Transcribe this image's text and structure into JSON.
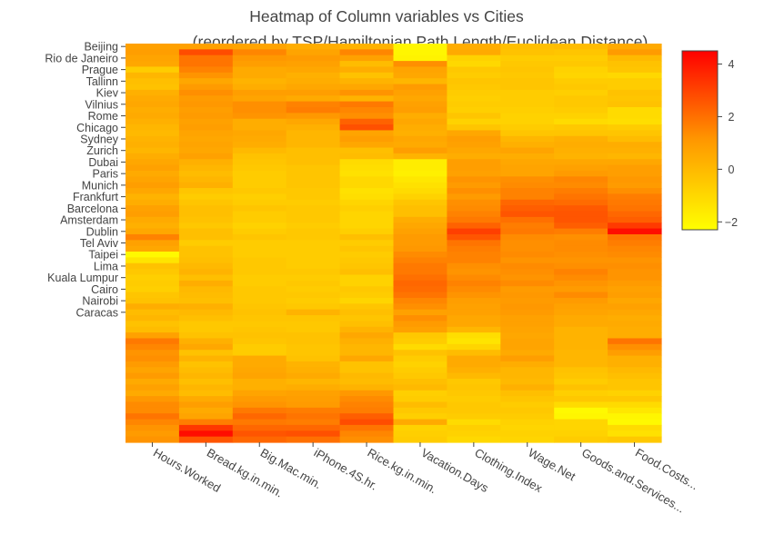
{
  "chart_data": {
    "type": "heatmap",
    "title_lines": [
      "Heatmap of Column variables vs Cities",
      "(reordered by TSP/Hamiltonian Path Length/Euclidean Distance)"
    ],
    "x_categories": [
      "Hours.Worked",
      "Bread.kg.in.min.",
      "Big.Mac.min.",
      "iPhone.4S.hr.",
      "Rice.kg.in.min.",
      "Vacation.Days",
      "Clothing.Index",
      "Wage.Net",
      "Goods.and.Services...",
      "Food.Costs..."
    ],
    "y_tick_labels": [
      "Beijing",
      "Rio de Janeiro",
      "Prague",
      "Tallinn",
      "Kiev",
      "Vilnius",
      "Rome",
      "Chicago",
      "Sydney",
      "Zurich",
      "Dubai",
      "Paris",
      "Munich",
      "Frankfurt",
      "Barcelona",
      "Amsterdam",
      "Dublin",
      "Tel Aviv",
      "Taipei",
      "Lima",
      "Kuala Lumpur",
      "Cairo",
      "Nairobi",
      "Caracas"
    ],
    "y_tick_rows": [
      0,
      2,
      4,
      6,
      8,
      10,
      12,
      14,
      16,
      18,
      20,
      22,
      24,
      26,
      28,
      30,
      32,
      34,
      36,
      38,
      40,
      42,
      44,
      46
    ],
    "z": [
      [
        0.8,
        0.8,
        0.7,
        0.4,
        0.2,
        -2.0,
        0.4,
        -0.2,
        -0.1,
        0.5
      ],
      [
        0.9,
        2.8,
        1.5,
        0.7,
        1.5,
        -2.0,
        0.5,
        -0.3,
        -0.4,
        1.0
      ],
      [
        0.7,
        1.9,
        1.1,
        1.0,
        0.8,
        -1.9,
        -0.8,
        -0.6,
        -0.6,
        0.0
      ],
      [
        0.6,
        1.9,
        0.9,
        0.8,
        -0.1,
        1.3,
        -1.0,
        -0.5,
        -0.5,
        -0.3
      ],
      [
        -0.6,
        1.6,
        0.5,
        0.6,
        0.4,
        0.7,
        -0.5,
        -0.4,
        -0.8,
        -0.4
      ],
      [
        0.1,
        1.2,
        0.5,
        0.3,
        -0.3,
        0.6,
        -0.6,
        -0.5,
        -0.9,
        -1.0
      ],
      [
        -0.2,
        0.6,
        0.2,
        0.4,
        0.2,
        0.1,
        -0.4,
        -0.4,
        -0.6,
        -0.6
      ],
      [
        -0.3,
        1.0,
        0.4,
        0.6,
        0.6,
        1.0,
        -0.5,
        -0.4,
        -0.5,
        -0.6
      ],
      [
        0.3,
        1.3,
        0.9,
        0.9,
        1.2,
        0.8,
        -0.6,
        -0.6,
        -0.7,
        -0.3
      ],
      [
        0.5,
        1.0,
        0.7,
        0.5,
        0.2,
        0.6,
        -0.7,
        -0.6,
        -0.5,
        -0.4
      ],
      [
        0.6,
        1.1,
        1.3,
        1.6,
        1.8,
        0.8,
        -0.6,
        -0.6,
        -0.5,
        -0.3
      ],
      [
        0.4,
        0.9,
        1.3,
        1.7,
        1.5,
        0.9,
        -0.7,
        -0.7,
        -0.6,
        -1.1
      ],
      [
        0.5,
        1.0,
        1.2,
        1.1,
        1.3,
        0.4,
        -0.4,
        -0.8,
        -0.8,
        -1.1
      ],
      [
        0.3,
        0.8,
        0.4,
        0.6,
        2.3,
        0.6,
        -0.8,
        -0.8,
        -1.1,
        -1.2
      ],
      [
        0.1,
        0.9,
        0.4,
        0.3,
        2.7,
        0.4,
        -0.4,
        -0.6,
        -0.5,
        -0.6
      ],
      [
        0.0,
        0.7,
        0.6,
        0.1,
        0.7,
        0.3,
        0.6,
        -0.4,
        -0.4,
        -0.4
      ],
      [
        0.2,
        0.6,
        0.5,
        0.1,
        0.9,
        0.6,
        0.9,
        0.1,
        0.3,
        -0.1
      ],
      [
        0.3,
        0.7,
        0.4,
        0.1,
        0.6,
        0.5,
        0.8,
        0.3,
        0.4,
        0.4
      ],
      [
        0.1,
        0.6,
        0.0,
        -0.2,
        -0.2,
        0.9,
        0.6,
        0.7,
        0.3,
        0.3
      ],
      [
        0.4,
        0.8,
        -0.3,
        -0.2,
        -0.1,
        0.2,
        0.4,
        0.4,
        0.2,
        0.1
      ],
      [
        0.6,
        0.3,
        -0.4,
        -0.2,
        -1.1,
        -1.7,
        0.9,
        0.6,
        0.6,
        0.6
      ],
      [
        0.8,
        0.1,
        -0.5,
        -0.4,
        -1.2,
        -1.7,
        0.9,
        0.7,
        0.8,
        0.9
      ],
      [
        0.5,
        -0.1,
        -0.6,
        -0.4,
        -1.3,
        -1.8,
        0.8,
        0.7,
        1.0,
        0.9
      ],
      [
        0.7,
        0.1,
        -0.6,
        -0.4,
        -1.0,
        -1.5,
        1.2,
        1.3,
        1.5,
        1.1
      ],
      [
        0.9,
        0.3,
        -0.6,
        -0.4,
        -1.0,
        -1.3,
        1.0,
        1.4,
        1.4,
        1.0
      ],
      [
        0.6,
        -0.4,
        -0.5,
        -0.5,
        -1.3,
        -1.1,
        1.3,
        1.6,
        1.7,
        1.3
      ],
      [
        0.2,
        -0.6,
        -0.7,
        -0.5,
        -1.2,
        -0.8,
        1.0,
        1.6,
        1.9,
        1.7
      ],
      [
        0.4,
        -0.4,
        -0.6,
        -0.6,
        -0.9,
        -0.4,
        1.3,
        2.2,
        2.1,
        1.8
      ],
      [
        0.8,
        -0.2,
        -0.4,
        -0.5,
        -0.7,
        -0.2,
        1.4,
        2.4,
        2.5,
        1.9
      ],
      [
        0.9,
        -0.2,
        -0.6,
        -0.5,
        -0.9,
        -0.2,
        1.6,
        2.6,
        2.6,
        2.2
      ],
      [
        0.5,
        -0.3,
        -0.6,
        -0.5,
        -0.9,
        0.4,
        1.8,
        2.0,
        2.6,
        2.4
      ],
      [
        0.3,
        -0.5,
        -0.8,
        -0.6,
        -0.9,
        0.6,
        2.3,
        1.7,
        2.4,
        3.2
      ],
      [
        0.6,
        -0.2,
        -0.6,
        -0.5,
        -0.7,
        0.8,
        3.1,
        1.8,
        1.7,
        4.2
      ],
      [
        1.6,
        -0.2,
        -0.4,
        -0.5,
        -0.2,
        1.0,
        2.6,
        1.4,
        1.3,
        1.9
      ],
      [
        0.8,
        -0.6,
        -0.6,
        -0.6,
        -0.6,
        1.0,
        1.9,
        1.3,
        1.4,
        1.7
      ],
      [
        0.6,
        -0.3,
        -0.6,
        -0.6,
        -0.4,
        1.1,
        1.7,
        1.3,
        1.4,
        1.5
      ],
      [
        -2.1,
        -0.3,
        -0.6,
        -0.6,
        -0.6,
        1.4,
        1.6,
        1.4,
        1.3,
        1.4
      ],
      [
        -1.4,
        -0.2,
        -0.5,
        -0.6,
        -0.5,
        1.6,
        1.6,
        1.2,
        1.2,
        1.2
      ],
      [
        -0.3,
        0.0,
        -0.5,
        -0.6,
        -0.4,
        1.8,
        1.3,
        1.4,
        1.3,
        1.3
      ],
      [
        -0.5,
        0.2,
        -0.5,
        -0.5,
        -0.2,
        1.8,
        1.2,
        1.3,
        1.6,
        1.2
      ],
      [
        -0.7,
        -0.2,
        -0.6,
        -0.6,
        -0.8,
        2.0,
        1.4,
        1.2,
        1.4,
        1.2
      ],
      [
        -0.6,
        0.4,
        -0.6,
        -0.5,
        -0.8,
        2.2,
        1.6,
        1.4,
        1.2,
        1.0
      ],
      [
        -0.7,
        0.0,
        -0.5,
        -0.6,
        -0.5,
        2.1,
        1.4,
        1.0,
        1.0,
        0.8
      ],
      [
        -0.4,
        -0.1,
        -0.5,
        -0.5,
        -0.6,
        1.9,
        1.2,
        1.1,
        1.4,
        0.9
      ],
      [
        -0.3,
        -0.2,
        -0.5,
        -0.6,
        -0.9,
        1.5,
        0.9,
        1.0,
        1.0,
        0.6
      ],
      [
        0.4,
        0.3,
        -0.4,
        -0.5,
        -0.4,
        1.3,
        0.8,
        1.1,
        0.8,
        0.8
      ],
      [
        -0.1,
        0.0,
        -0.3,
        0.2,
        -0.2,
        0.8,
        0.8,
        1.0,
        0.7,
        0.6
      ],
      [
        0.1,
        -0.2,
        -0.4,
        -0.4,
        -0.4,
        1.3,
        0.6,
        0.8,
        0.5,
        0.4
      ],
      [
        -0.3,
        -0.5,
        -0.5,
        -0.5,
        -0.2,
        1.0,
        0.6,
        0.8,
        0.5,
        0.5
      ],
      [
        -0.1,
        -0.5,
        -0.4,
        -0.5,
        0.2,
        0.8,
        0.1,
        0.7,
        0.2,
        0.4
      ],
      [
        0.8,
        -0.3,
        -0.3,
        -0.3,
        0.6,
        -0.5,
        -1.2,
        0.6,
        0.2,
        0.4
      ],
      [
        1.8,
        0.3,
        -0.4,
        -0.3,
        0.3,
        -0.6,
        -1.4,
        0.7,
        0.2,
        1.9
      ],
      [
        1.5,
        0.6,
        -0.6,
        -0.4,
        0.1,
        -1.1,
        -0.9,
        0.7,
        0.2,
        1.3
      ],
      [
        1.2,
        -0.3,
        -0.6,
        -0.4,
        0.1,
        -0.3,
        -0.1,
        0.5,
        0.1,
        0.9
      ],
      [
        1.3,
        0.2,
        0.5,
        -0.3,
        0.6,
        -0.6,
        0.5,
        0.9,
        0.1,
        0.3
      ],
      [
        1.0,
        -0.3,
        0.5,
        0.2,
        -0.3,
        -0.8,
        0.5,
        0.4,
        0.1,
        0.3
      ],
      [
        0.7,
        -0.1,
        0.6,
        0.3,
        -0.3,
        -0.6,
        0.3,
        0.1,
        -0.3,
        0.0
      ],
      [
        1.0,
        0.1,
        0.7,
        0.5,
        0.0,
        -0.5,
        0.0,
        0.1,
        -0.4,
        -0.2
      ],
      [
        0.5,
        -0.2,
        0.3,
        0.1,
        -0.1,
        -0.2,
        -0.5,
        0.0,
        -0.6,
        -0.4
      ],
      [
        0.8,
        0.1,
        0.3,
        0.4,
        0.2,
        0.0,
        -0.4,
        0.3,
        -0.3,
        -0.4
      ],
      [
        0.5,
        -0.1,
        0.7,
        0.8,
        1.1,
        -0.7,
        -0.5,
        -0.2,
        -0.7,
        -0.8
      ],
      [
        1.1,
        0.5,
        1.0,
        0.9,
        1.4,
        -0.6,
        -0.6,
        -0.4,
        -0.5,
        -0.5
      ],
      [
        1.4,
        0.9,
        1.2,
        1.0,
        1.6,
        -0.1,
        -0.5,
        -0.6,
        -1.1,
        -1.1
      ],
      [
        1.4,
        0.5,
        1.8,
        1.7,
        1.7,
        -0.5,
        -0.5,
        -0.5,
        -2.1,
        -1.5
      ],
      [
        1.9,
        0.7,
        2.2,
        1.9,
        2.4,
        -0.7,
        -0.6,
        -0.6,
        -2.0,
        -2.0
      ],
      [
        1.5,
        1.7,
        1.8,
        1.7,
        2.8,
        0.5,
        -1.1,
        -0.8,
        -0.9,
        -2.1
      ],
      [
        1.2,
        3.3,
        2.2,
        2.2,
        1.9,
        -0.8,
        -0.7,
        -0.9,
        -0.9,
        -1.1
      ],
      [
        1.0,
        4.2,
        2.6,
        2.7,
        1.5,
        -0.7,
        -0.8,
        -0.8,
        -0.8,
        -1.3
      ],
      [
        1.2,
        2.6,
        2.2,
        2.0,
        1.3,
        -0.6,
        -1.0,
        -0.9,
        -0.6,
        -0.5
      ]
    ],
    "colorscale": [
      [
        0.0,
        "#ffff00"
      ],
      [
        0.5,
        "#ff9800"
      ],
      [
        1.0,
        "#ff0000"
      ]
    ],
    "colorbar": {
      "zmin": -2.3,
      "zmax": 4.5,
      "ticks": [
        -2,
        0,
        2,
        4
      ],
      "tick_labels": [
        "−2",
        "0",
        "2",
        "4"
      ]
    },
    "grid": false,
    "legend": "colorbar-right"
  }
}
